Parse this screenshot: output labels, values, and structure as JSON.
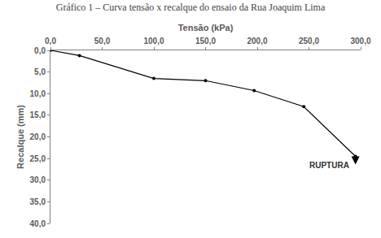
{
  "chart_data": {
    "type": "line",
    "title": "Gráfico 1 – Curva tensão x recalque do ensaio da Rua Joaquim Lima",
    "x_label": "Tensão (kPa)",
    "y_label": "Recalque (mm)",
    "x": [
      0,
      28,
      100,
      150,
      197,
      245,
      295
    ],
    "values": [
      0,
      1.2,
      6.5,
      7,
      9.3,
      13,
      24.5
    ],
    "color": "#000000",
    "marker": "circle",
    "xlim": [
      0,
      300
    ],
    "xticks": [
      {
        "value": 0,
        "label": "0,0"
      },
      {
        "value": 50,
        "label": "50,0"
      },
      {
        "value": 100,
        "label": "100,0"
      },
      {
        "value": 150,
        "label": "150,0"
      },
      {
        "value": 200,
        "label": "200,0"
      },
      {
        "value": 250,
        "label": "250,0"
      },
      {
        "value": 300,
        "label": "300,0"
      }
    ],
    "ylim": [
      0,
      40
    ],
    "yticks": [
      {
        "value": 0,
        "label": "0,0"
      },
      {
        "value": 5,
        "label": "5,0"
      },
      {
        "value": 10,
        "label": "10,0"
      },
      {
        "value": 15,
        "label": "15,0"
      },
      {
        "value": 20,
        "label": "20,0"
      },
      {
        "value": 25,
        "label": "25,0"
      },
      {
        "value": 30,
        "label": "30,0"
      },
      {
        "value": 35,
        "label": "35,0"
      },
      {
        "value": 40,
        "label": "40,0"
      }
    ],
    "grid": false,
    "annotations": [
      {
        "text": "RUPTURA",
        "x": 270,
        "y": 26.5
      }
    ]
  }
}
